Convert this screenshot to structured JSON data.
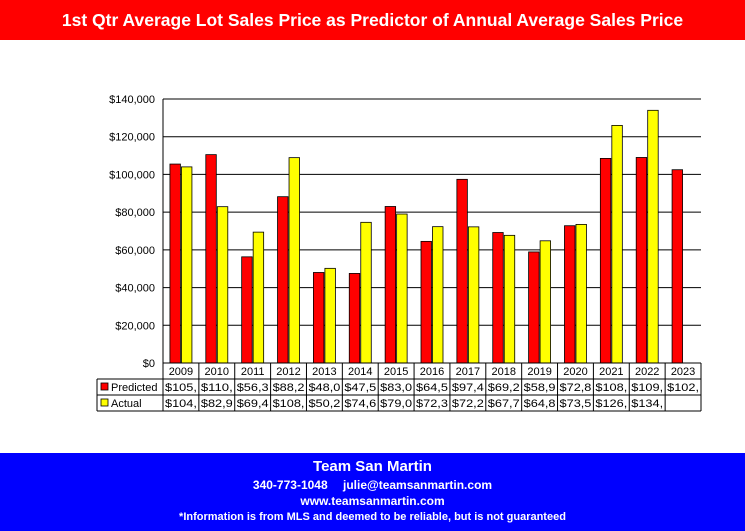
{
  "header": {
    "title": "1st Qtr Average Lot Sales Price as Predictor of Annual Average Sales Price"
  },
  "footer": {
    "company": "Team San Martin",
    "phone": "340-773-1048",
    "email": "julie@teamsanmartin.com",
    "website": "www.teamsanmartin.com",
    "disclaimer": "*Information is from MLS and deemed to be reliable, but is not guaranteed"
  },
  "chart_data": {
    "type": "bar",
    "categories": [
      "2009",
      "2010",
      "2011",
      "2012",
      "2013",
      "2014",
      "2015",
      "2016",
      "2017",
      "2018",
      "2019",
      "2020",
      "2021",
      "2022",
      "2023"
    ],
    "series": [
      {
        "name": "Predicted",
        "color": "#ff0000",
        "values": [
          105500,
          110500,
          56300,
          88200,
          48000,
          47500,
          83000,
          64500,
          97400,
          69200,
          58900,
          72800,
          108500,
          109000,
          102500
        ],
        "table_labels": [
          "$105,",
          "$110,",
          "$56,3",
          "$88,2",
          "$48,0",
          "$47,5",
          "$83,0",
          "$64,5",
          "$97,4",
          "$69,2",
          "$58,9",
          "$72,8",
          "$108,",
          "$109,",
          "$102,"
        ]
      },
      {
        "name": "Actual",
        "color": "#ffff00",
        "values": [
          104000,
          82900,
          69400,
          108900,
          50200,
          74600,
          79000,
          72300,
          72200,
          67700,
          64800,
          73500,
          126000,
          134000,
          null
        ],
        "table_labels": [
          "$104,",
          "$82,9",
          "$69,4",
          "$108,",
          "$50,2",
          "$74,6",
          "$79,0",
          "$72,3",
          "$72,2",
          "$67,7",
          "$64,8",
          "$73,5",
          "$126,",
          "$134,",
          ""
        ]
      }
    ],
    "ylim": [
      0,
      140000
    ],
    "y_ticks": [
      "$0",
      "$20,000",
      "$40,000",
      "$60,000",
      "$80,000",
      "$100,000",
      "$120,000",
      "$140,000"
    ],
    "y_tick_values": [
      0,
      20000,
      40000,
      60000,
      80000,
      100000,
      120000,
      140000
    ],
    "grid": true,
    "legend": "data-table"
  }
}
